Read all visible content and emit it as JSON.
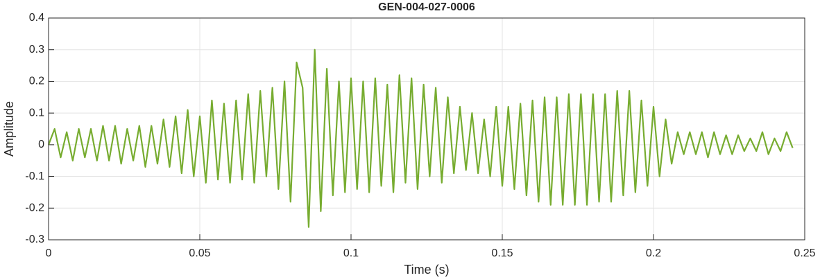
{
  "chart_data": {
    "type": "line",
    "title": "GEN-004-027-0006",
    "x_label": "Time (s)",
    "y_label": "Amplitude",
    "xlim": [
      0,
      0.25
    ],
    "xticks": [
      0,
      0.05,
      0.1,
      0.15,
      0.2,
      0.25
    ],
    "ylim": [
      -0.3,
      0.4
    ],
    "yticks": [
      -0.3,
      -0.2,
      -0.1,
      0,
      0.1,
      0.2,
      0.3,
      0.4
    ],
    "grid": true,
    "x": [
      0,
      0.002,
      0.004,
      0.006,
      0.008,
      0.01,
      0.012,
      0.014,
      0.016,
      0.018,
      0.02,
      0.022,
      0.024,
      0.026,
      0.028,
      0.03,
      0.032,
      0.034,
      0.036,
      0.038,
      0.04,
      0.042,
      0.044,
      0.046,
      0.048,
      0.05,
      0.052,
      0.054,
      0.056,
      0.058,
      0.06,
      0.062,
      0.064,
      0.066,
      0.068,
      0.07,
      0.072,
      0.074,
      0.076,
      0.078,
      0.08,
      0.082,
      0.084,
      0.086,
      0.088,
      0.09,
      0.092,
      0.094,
      0.096,
      0.098,
      0.1,
      0.102,
      0.104,
      0.106,
      0.108,
      0.11,
      0.112,
      0.114,
      0.116,
      0.118,
      0.12,
      0.122,
      0.124,
      0.126,
      0.128,
      0.13,
      0.132,
      0.134,
      0.136,
      0.138,
      0.14,
      0.142,
      0.144,
      0.146,
      0.148,
      0.15,
      0.152,
      0.154,
      0.156,
      0.158,
      0.16,
      0.162,
      0.164,
      0.166,
      0.168,
      0.17,
      0.172,
      0.174,
      0.176,
      0.178,
      0.18,
      0.182,
      0.184,
      0.186,
      0.188,
      0.19,
      0.192,
      0.194,
      0.196,
      0.198,
      0.2,
      0.202,
      0.204,
      0.206,
      0.208,
      0.21,
      0.212,
      0.214,
      0.216,
      0.218,
      0.22,
      0.222,
      0.224,
      0.226,
      0.228,
      0.23,
      0.232,
      0.234,
      0.236,
      0.238,
      0.24,
      0.242,
      0.244,
      0.246
    ],
    "series": [
      {
        "color": "#77ac30",
        "values": [
          0,
          0.05,
          -0.04,
          0.04,
          -0.05,
          0.05,
          -0.04,
          0.05,
          -0.05,
          0.06,
          -0.05,
          0.06,
          -0.06,
          0.05,
          -0.05,
          0.06,
          -0.07,
          0.06,
          -0.06,
          0.08,
          -0.07,
          0.09,
          -0.09,
          0.11,
          -0.1,
          0.09,
          -0.12,
          0.14,
          -0.11,
          0.13,
          -0.12,
          0.14,
          -0.11,
          0.16,
          -0.12,
          0.17,
          -0.1,
          0.18,
          -0.14,
          0.2,
          -0.18,
          0.26,
          0.18,
          -0.26,
          0.3,
          -0.21,
          0.24,
          -0.16,
          0.2,
          -0.15,
          0.21,
          -0.14,
          0.2,
          -0.15,
          0.21,
          -0.13,
          0.19,
          -0.15,
          0.22,
          -0.12,
          0.21,
          -0.14,
          0.19,
          -0.1,
          0.18,
          -0.12,
          0.15,
          -0.09,
          0.12,
          -0.08,
          0.1,
          -0.09,
          0.08,
          -0.1,
          0.12,
          -0.13,
          0.12,
          -0.14,
          0.13,
          -0.16,
          0.14,
          -0.18,
          0.15,
          -0.19,
          0.15,
          -0.19,
          0.16,
          -0.19,
          0.16,
          -0.19,
          0.16,
          -0.18,
          0.16,
          -0.18,
          0.17,
          -0.16,
          0.17,
          -0.15,
          0.14,
          -0.13,
          0.12,
          -0.1,
          0.08,
          -0.06,
          0.04,
          -0.03,
          0.04,
          -0.03,
          0.04,
          -0.04,
          0.04,
          -0.03,
          0.03,
          -0.03,
          0.03,
          -0.02,
          0.02,
          -0.02,
          0.04,
          -0.03,
          0.02,
          -0.02,
          0.04,
          -0.01
        ]
      }
    ]
  }
}
